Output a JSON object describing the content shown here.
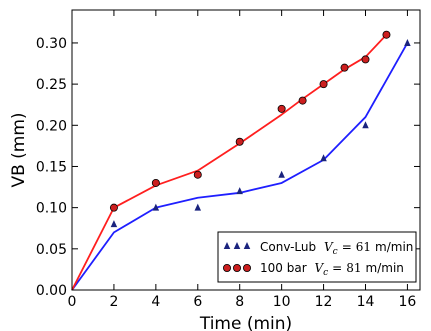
{
  "chart_data": {
    "type": "line",
    "xlabel": "Time (min)",
    "ylabel": "VB (mm)",
    "xlim": [
      0,
      16.6
    ],
    "ylim": [
      0,
      0.34
    ],
    "xticks": [
      "0",
      "2",
      "4",
      "6",
      "8",
      "10",
      "12",
      "14",
      "16"
    ],
    "yticks": [
      "0.00",
      "0.05",
      "0.10",
      "0.15",
      "0.20",
      "0.25",
      "0.30"
    ],
    "grid": false,
    "legend_position": "lower-right",
    "series": [
      {
        "name": "Conv-Lub",
        "legend_value": "61",
        "legend_unit": "m/min",
        "color": "#1f1fff",
        "marker": "triangle",
        "marker_color": "#1a237e",
        "markers": {
          "x": [
            2,
            4,
            6,
            8,
            10,
            12,
            14,
            16
          ],
          "y": [
            0.08,
            0.1,
            0.1,
            0.12,
            0.14,
            0.16,
            0.2,
            0.3
          ]
        },
        "line": {
          "x": [
            0,
            2,
            4,
            6,
            8,
            10,
            12,
            14,
            16
          ],
          "y": [
            0.0,
            0.07,
            0.1,
            0.112,
            0.118,
            0.13,
            0.158,
            0.21,
            0.3
          ]
        }
      },
      {
        "name": "100 bar",
        "legend_value": "81",
        "legend_unit": "m/min",
        "color": "#ff1f1f",
        "marker": "circle",
        "marker_color": "#cc1f1f",
        "markers": {
          "x": [
            2,
            4,
            6,
            8,
            10,
            11,
            12,
            13,
            14,
            15
          ],
          "y": [
            0.1,
            0.13,
            0.14,
            0.18,
            0.22,
            0.23,
            0.25,
            0.27,
            0.28,
            0.31
          ]
        },
        "line": {
          "x": [
            0,
            2,
            4,
            6,
            8,
            10,
            11,
            12,
            13,
            14,
            15
          ],
          "y": [
            0.0,
            0.1,
            0.127,
            0.145,
            0.178,
            0.213,
            0.232,
            0.25,
            0.268,
            0.283,
            0.31
          ]
        }
      }
    ],
    "legend_var": "V",
    "legend_sub": "c",
    "legend_eq": "="
  }
}
